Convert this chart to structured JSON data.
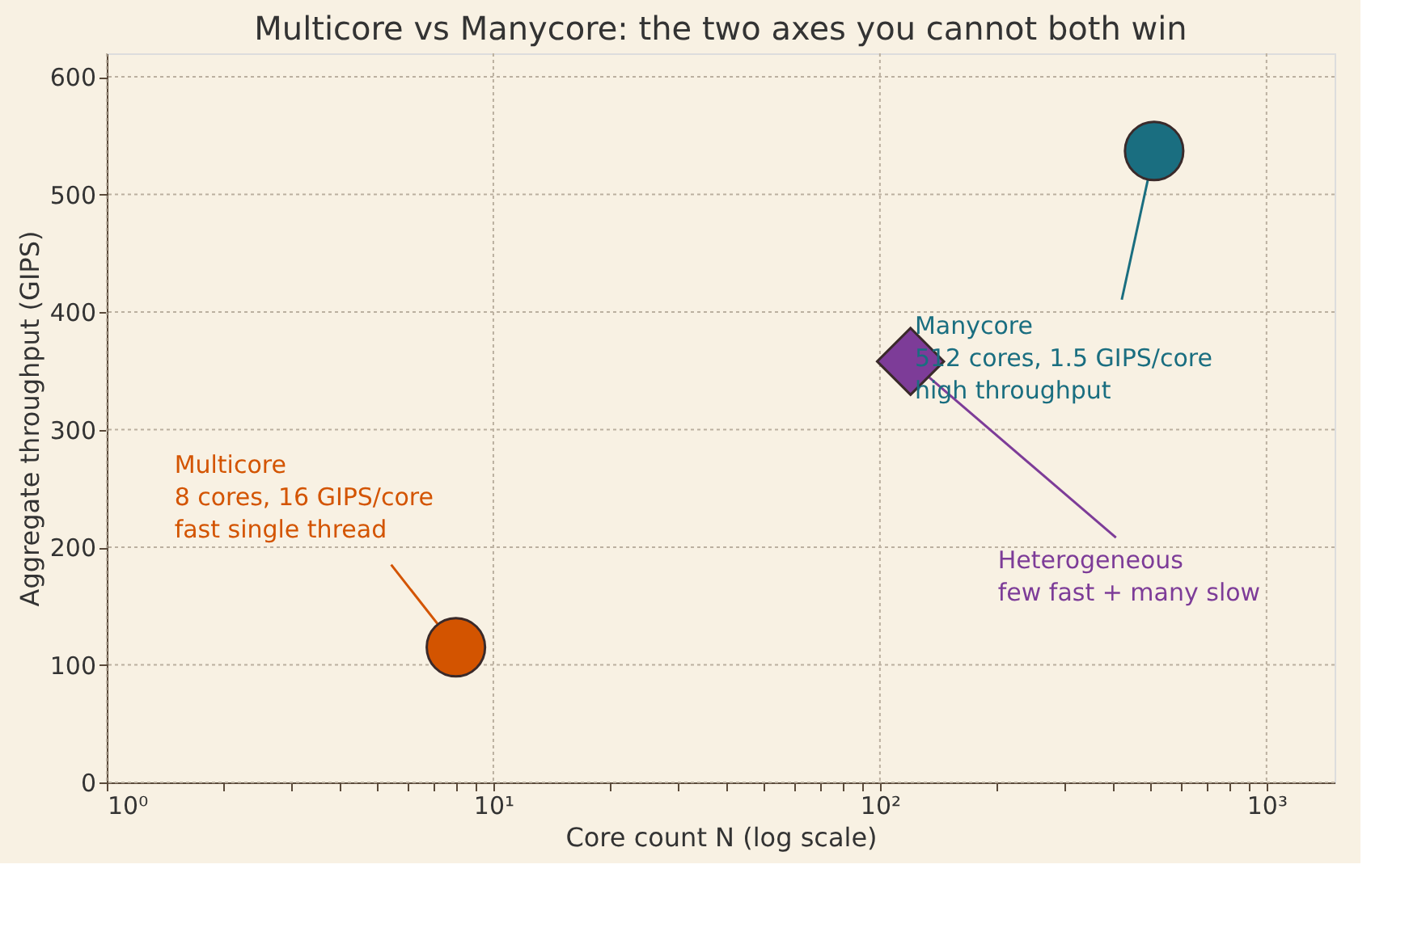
{
  "chart_data": {
    "type": "scatter",
    "title": "Multicore vs Manycore: the two axes you cannot both win",
    "xlabel": "Core count N  (log scale)",
    "ylabel": "Aggregate throughput (GIPS)",
    "log": "x",
    "grid": true,
    "xlim": [
      1,
      1500
    ],
    "ylim": [
      0,
      620
    ],
    "xticks": [
      {
        "value": 1,
        "label": "10⁰"
      },
      {
        "value": 2,
        "label": null
      },
      {
        "value": 3,
        "label": null
      },
      {
        "value": 4,
        "label": null
      },
      {
        "value": 5,
        "label": null
      },
      {
        "value": 6,
        "label": null
      },
      {
        "value": 7,
        "label": null
      },
      {
        "value": 8,
        "label": null
      },
      {
        "value": 9,
        "label": null
      },
      {
        "value": 10,
        "label": "10¹"
      },
      {
        "value": 20,
        "label": null
      },
      {
        "value": 30,
        "label": null
      },
      {
        "value": 40,
        "label": null
      },
      {
        "value": 50,
        "label": null
      },
      {
        "value": 60,
        "label": null
      },
      {
        "value": 70,
        "label": null
      },
      {
        "value": 80,
        "label": null
      },
      {
        "value": 90,
        "label": null
      },
      {
        "value": 100,
        "label": "10²"
      },
      {
        "value": 200,
        "label": null
      },
      {
        "value": 300,
        "label": null
      },
      {
        "value": 400,
        "label": null
      },
      {
        "value": 500,
        "label": null
      },
      {
        "value": 600,
        "label": null
      },
      {
        "value": 700,
        "label": null
      },
      {
        "value": 800,
        "label": null
      },
      {
        "value": 900,
        "label": null
      },
      {
        "value": 1000,
        "label": "10³"
      }
    ],
    "yticks": [
      0,
      100,
      200,
      300,
      400,
      500,
      600
    ],
    "series": [
      {
        "color": "#d35400",
        "marker": "circle",
        "x": [
          8
        ],
        "values": [
          115
        ]
      },
      {
        "color": "#1a6e80",
        "marker": "circle",
        "x": [
          512
        ],
        "values": [
          537
        ]
      },
      {
        "color": "#7d3c98",
        "marker": "diamond",
        "x": [
          120
        ],
        "values": [
          358
        ]
      }
    ],
    "annotations": [
      {
        "text": "Multicore\n8 cores, 16 GIPS/core\nfast single thread",
        "x": 8,
        "y": 115
      },
      {
        "text": "Manycore\n512 cores, 1.5 GIPS/core\nhigh throughput",
        "x": 512,
        "y": 537
      },
      {
        "text": "Heterogeneous\nfew fast + many slow",
        "x": 120,
        "y": 358
      }
    ]
  }
}
